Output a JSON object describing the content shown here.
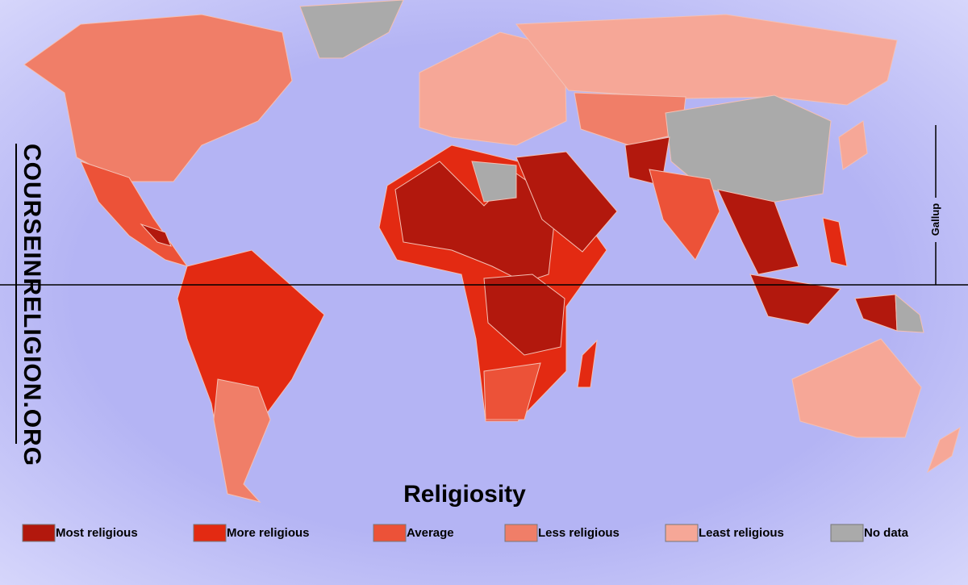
{
  "title": "Religiosity",
  "watermark": "COURSEINRELIGION.ORG",
  "source": "Gallup",
  "legend": [
    {
      "label": "Most religious",
      "color": "#b2180d"
    },
    {
      "label": "More religious",
      "color": "#e32a12"
    },
    {
      "label": "Average",
      "color": "#ec5238"
    },
    {
      "label": "Less religious",
      "color": "#f07e68"
    },
    {
      "label": "Least religious",
      "color": "#f6a797"
    },
    {
      "label": "No data",
      "color": "#aaaaaa"
    }
  ]
}
